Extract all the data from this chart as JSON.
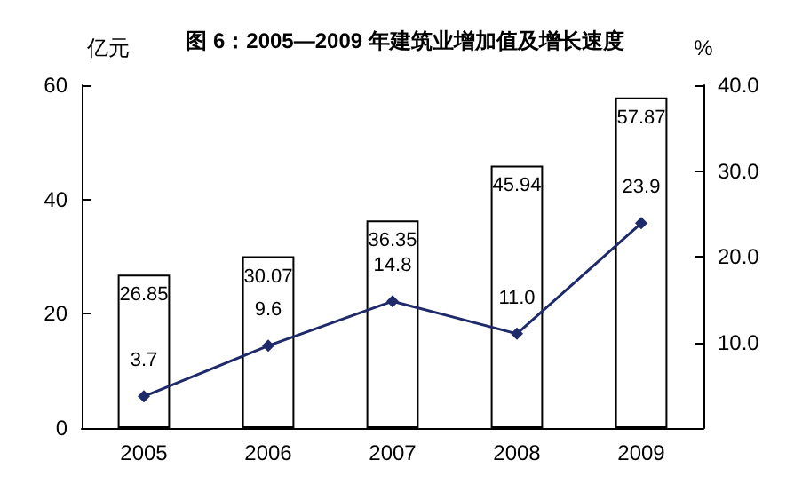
{
  "chart_data": {
    "type": "bar",
    "title": "图 6：2005—2009 年建筑业增加值及增长速度",
    "ylabel": "亿元",
    "y2label": "%",
    "categories": [
      "2005",
      "2006",
      "2007",
      "2008",
      "2009"
    ],
    "series": [
      {
        "color": "#ffffff",
        "values": [
          26.85,
          30.07,
          36.35,
          45.94,
          57.87
        ],
        "value_labels": [
          "26.85",
          "30.07",
          "36.35",
          "45.94",
          "57.87"
        ]
      },
      {
        "type": "line",
        "axis": "y2",
        "color": "#1f2a6b",
        "values": [
          3.7,
          9.6,
          14.8,
          11.0,
          23.9
        ],
        "value_labels": [
          "3.7",
          "9.6",
          "14.8",
          "11.0",
          "23.9"
        ]
      }
    ],
    "ylim": [
      0,
      60
    ],
    "yticks": [
      0,
      20,
      40,
      60
    ],
    "y2lim": [
      0,
      40
    ],
    "y2ticks": [
      {
        "value": 10,
        "label": "10.0"
      },
      {
        "value": 20,
        "label": "20.0"
      },
      {
        "value": 30,
        "label": "30.0"
      },
      {
        "value": 40,
        "label": "40.0"
      }
    ],
    "marker": "diamond",
    "grid": false
  }
}
